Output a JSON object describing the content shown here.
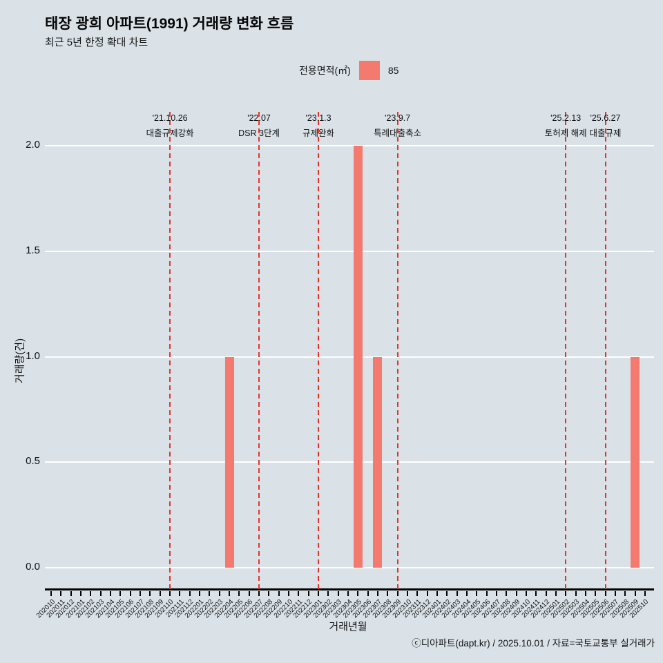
{
  "header": {
    "title": "태장 광희 아파트(1991) 거래량 변화 흐름",
    "subtitle": "최근 5년 한정 확대 차트"
  },
  "legend": {
    "label": "전용면적(㎡)",
    "value": "85",
    "swatch_color": "#f4796f"
  },
  "footer": {
    "credit": "ⓒ디아파트(dapt.kr) / 2025.10.01 / 자료=국토교통부 실거래가"
  },
  "chart_data": {
    "type": "bar",
    "title": "태장 광희 아파트(1991) 거래량 변화 흐름",
    "xlabel": "거래년월",
    "ylabel": "거래량(건)",
    "ylim": [
      0,
      2
    ],
    "yticks": [
      0.0,
      0.5,
      1.0,
      1.5,
      2.0
    ],
    "grid": "horizontal-white",
    "legend_position": "top-center",
    "bar_color": "#f4796f",
    "vline_color": "#e63329",
    "background_color": "#dae2e8",
    "categories": [
      "202010",
      "202011",
      "202012",
      "202101",
      "202102",
      "202103",
      "202104",
      "202105",
      "202106",
      "202107",
      "202108",
      "202109",
      "202110",
      "202111",
      "202112",
      "202201",
      "202202",
      "202203",
      "202204",
      "202205",
      "202206",
      "202207",
      "202208",
      "202209",
      "202210",
      "202211",
      "202212",
      "202301",
      "202302",
      "202303",
      "202304",
      "202305",
      "202306",
      "202307",
      "202308",
      "202309",
      "202310",
      "202311",
      "202312",
      "202401",
      "202402",
      "202403",
      "202404",
      "202405",
      "202406",
      "202407",
      "202408",
      "202409",
      "202410",
      "202411",
      "202412",
      "202501",
      "202502",
      "202503",
      "202504",
      "202505",
      "202506",
      "202507",
      "202508",
      "202509",
      "202510"
    ],
    "values": [
      0,
      0,
      0,
      0,
      0,
      0,
      0,
      0,
      0,
      0,
      0,
      0,
      0,
      0,
      0,
      0,
      0,
      0,
      1,
      0,
      0,
      0,
      0,
      0,
      0,
      0,
      0,
      0,
      0,
      0,
      0,
      2,
      0,
      1,
      0,
      0,
      0,
      0,
      0,
      0,
      0,
      0,
      0,
      0,
      0,
      0,
      0,
      0,
      0,
      0,
      0,
      0,
      0,
      0,
      0,
      0,
      0,
      0,
      0,
      1,
      0
    ],
    "annotations": [
      {
        "month": "202110",
        "date": "'21.10.26",
        "label": "대출규제강화"
      },
      {
        "month": "202207",
        "date": "'22.07",
        "label": "DSR 3단계"
      },
      {
        "month": "202301",
        "date": "'23.1.3",
        "label": "규제완화"
      },
      {
        "month": "202309",
        "date": "'23.9.7",
        "label": "특례대출축소"
      },
      {
        "month": "202502",
        "date": "'25.2.13",
        "label": "토허제 해제"
      },
      {
        "month": "202506",
        "date": "'25.6.27",
        "label": "대출규제"
      }
    ]
  }
}
